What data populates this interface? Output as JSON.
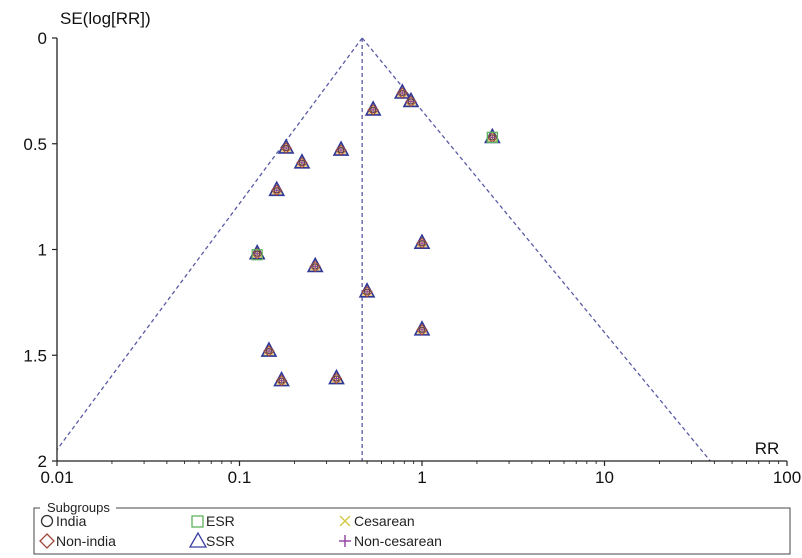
{
  "chart_data": {
    "type": "scatter",
    "title": "",
    "xlabel": "RR",
    "ylabel": "SE(log[RR])",
    "x_scale": "log",
    "xlim": [
      0.01,
      100
    ],
    "ylim": [
      0,
      2
    ],
    "y_inverted": true,
    "x_ticks": [
      {
        "value": 0.01,
        "label": "0.01"
      },
      {
        "value": 0.1,
        "label": "0.1"
      },
      {
        "value": 1,
        "label": "1"
      },
      {
        "value": 10,
        "label": "10"
      },
      {
        "value": 100,
        "label": "100"
      }
    ],
    "y_ticks": [
      {
        "value": 0,
        "label": "0"
      },
      {
        "value": 0.5,
        "label": "0.5"
      },
      {
        "value": 1,
        "label": "1"
      },
      {
        "value": 1.5,
        "label": "1.5"
      },
      {
        "value": 2,
        "label": "2"
      }
    ],
    "grid": false,
    "pooled_estimate": 0.47,
    "funnel": {
      "apex_x": 0.47,
      "apex_y": 0,
      "left_x_at_ymax": 0.009,
      "right_x_at_ymax": 38
    },
    "points": [
      {
        "x": 0.78,
        "y": 0.26
      },
      {
        "x": 0.87,
        "y": 0.3
      },
      {
        "x": 0.54,
        "y": 0.34
      },
      {
        "x": 2.43,
        "y": 0.47
      },
      {
        "x": 0.18,
        "y": 0.52
      },
      {
        "x": 0.36,
        "y": 0.53
      },
      {
        "x": 0.22,
        "y": 0.59
      },
      {
        "x": 0.16,
        "y": 0.72
      },
      {
        "x": 1.0,
        "y": 0.97
      },
      {
        "x": 0.125,
        "y": 1.02
      },
      {
        "x": 0.26,
        "y": 1.08
      },
      {
        "x": 0.5,
        "y": 1.2
      },
      {
        "x": 1.0,
        "y": 1.38
      },
      {
        "x": 0.145,
        "y": 1.48
      },
      {
        "x": 0.17,
        "y": 1.62
      },
      {
        "x": 0.34,
        "y": 1.61
      }
    ],
    "legend": {
      "title": "Subgroups",
      "placement": "bottom",
      "items": [
        {
          "label": "India",
          "marker": "circle",
          "color": "#333333"
        },
        {
          "label": "Non-india",
          "marker": "diamond",
          "color": "#a0453a"
        },
        {
          "label": "ESR",
          "marker": "square",
          "color": "#5db35d"
        },
        {
          "label": "SSR",
          "marker": "triangle",
          "color": "#3b3fa3"
        },
        {
          "label": "Cesarean",
          "marker": "x",
          "color": "#d4c84a"
        },
        {
          "label": "Non-cesarean",
          "marker": "plus",
          "color": "#8e3f9e"
        }
      ]
    },
    "colors": {
      "axis": "#222222",
      "guide_line": "#5a5aa6",
      "marker_outline": "#2f3799",
      "marker_fill": "#e8cf8c"
    }
  }
}
